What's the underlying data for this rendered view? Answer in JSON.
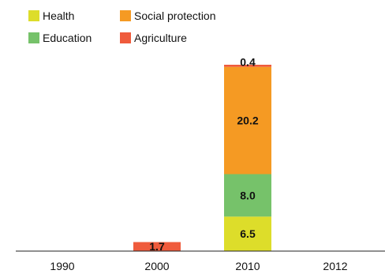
{
  "chart_data": {
    "type": "bar",
    "stacked": true,
    "categories": [
      "1990",
      "2000",
      "2010",
      "2012"
    ],
    "series": [
      {
        "name": "Health",
        "color": "#dddd2a",
        "values": [
          null,
          null,
          6.5,
          null
        ]
      },
      {
        "name": "Education",
        "color": "#76c26a",
        "values": [
          null,
          null,
          8.0,
          null
        ]
      },
      {
        "name": "Social protection",
        "color": "#f59a23",
        "values": [
          null,
          null,
          20.2,
          null
        ]
      },
      {
        "name": "Agriculture",
        "color": "#ef5b3c",
        "values": [
          null,
          1.7,
          0.4,
          null
        ]
      }
    ],
    "data_labels": {
      "2000": {
        "Agriculture": "1.7"
      },
      "2010": {
        "Health": "6.5",
        "Education": "8.0",
        "Social protection": "20.2",
        "Agriculture": "0.4"
      }
    },
    "legend": {
      "placement": "top-left",
      "rows": [
        [
          "Health",
          "Social protection"
        ],
        [
          "Education",
          "Agriculture"
        ]
      ]
    },
    "ylim": [
      0,
      36
    ],
    "grid": false,
    "title": "",
    "xlabel": "",
    "ylabel": ""
  }
}
